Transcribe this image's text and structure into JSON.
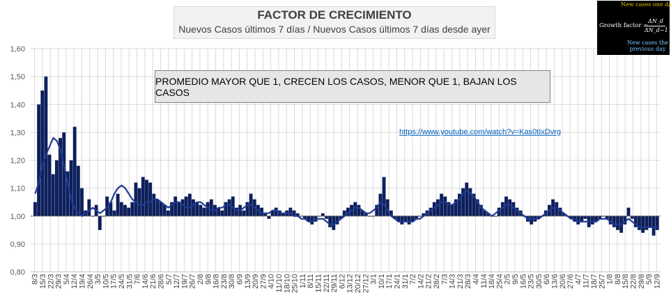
{
  "chart_data": {
    "type": "bar",
    "title": "FACTOR DE CRECIMIENTO",
    "subtitle": "Nuevos Casos últimos 7 días / Nuevos Casos últimos 7 días desde ayer",
    "annotation": "PROMEDIO MAYOR QUE 1, CRECEN LOS CASOS, MENOR QUE 1, BAJAN LOS CASOS",
    "link": "https://www.youtube.com/watch?v=Kas0tIxDvrg",
    "baseline": 1.0,
    "ylim": [
      0.8,
      1.6
    ],
    "yticks": [
      "0,80",
      "0,90",
      "1,00",
      "1,10",
      "1,20",
      "1,30",
      "1,40",
      "1,50",
      "1,60"
    ],
    "xticks": [
      "8/3",
      "15/3",
      "22/3",
      "29/3",
      "5/4",
      "12/4",
      "19/4",
      "26/4",
      "3/5",
      "10/5",
      "17/5",
      "24/5",
      "31/5",
      "7/6",
      "14/6",
      "21/6",
      "28/6",
      "5/7",
      "12/7",
      "19/7",
      "26/7",
      "2/8",
      "9/8",
      "16/8",
      "23/8",
      "30/8",
      "6/9",
      "13/9",
      "20/9",
      "27/9",
      "4/10",
      "11/10",
      "18/10",
      "25/10",
      "1/11",
      "8/11",
      "15/11",
      "22/11",
      "29/11",
      "6/12",
      "13/12",
      "20/12",
      "27/12",
      "3/1",
      "10/1",
      "17/1",
      "24/1",
      "31/1",
      "7/2",
      "14/2",
      "21/2",
      "28/2",
      "7/3",
      "14/3",
      "21/3",
      "28/3",
      "4/4",
      "11/4",
      "18/4",
      "25/4",
      "2/5",
      "9/5",
      "16/5",
      "23/5",
      "30/5",
      "6/6",
      "13/6",
      "20/6",
      "27/6",
      "4/7",
      "11/7",
      "18/7",
      "25/7",
      "1/8",
      "8/8",
      "15/8",
      "22/8",
      "29/8",
      "5/9",
      "12/9"
    ],
    "series": [
      {
        "values": [
          1.05,
          1.4,
          1.45,
          1.5,
          1.22,
          1.15,
          1.2,
          1.28,
          1.3,
          1.16,
          1.2,
          1.32,
          1.18,
          1.1,
          1.02,
          1.06,
          1.0,
          1.04,
          0.95,
          1.0,
          1.07,
          1.05,
          1.02,
          1.08,
          1.05,
          1.04,
          1.03,
          1.05,
          1.12,
          1.1,
          1.14,
          1.13,
          1.12,
          1.08,
          1.06,
          1.05,
          1.04,
          1.02,
          1.05,
          1.07,
          1.05,
          1.06,
          1.07,
          1.08,
          1.06,
          1.05,
          1.04,
          1.03,
          1.05,
          1.06,
          1.04,
          1.03,
          1.02,
          1.05,
          1.06,
          1.07,
          1.03,
          1.04,
          1.02,
          1.05,
          1.08,
          1.06,
          1.04,
          1.03,
          1.01,
          0.99,
          1.02,
          1.03,
          1.02,
          1.01,
          1.02,
          1.03,
          1.02,
          1.01,
          1.0,
          0.99,
          0.98,
          0.97,
          0.98,
          1.0,
          1.01,
          0.99,
          0.96,
          0.95,
          0.97,
          0.99,
          1.02,
          1.03,
          1.04,
          1.05,
          1.04,
          1.02,
          1.01,
          1.0,
          1.0,
          1.04,
          1.08,
          1.14,
          1.06,
          1.02,
          0.99,
          0.98,
          0.97,
          0.98,
          0.97,
          0.98,
          0.99,
          1.0,
          1.01,
          1.02,
          1.03,
          1.05,
          1.06,
          1.08,
          1.07,
          1.05,
          1.04,
          1.06,
          1.08,
          1.1,
          1.12,
          1.1,
          1.08,
          1.06,
          1.04,
          1.02,
          1.01,
          1.0,
          1.0,
          1.03,
          1.05,
          1.07,
          1.06,
          1.05,
          1.03,
          1.02,
          1.0,
          0.98,
          0.97,
          0.98,
          0.99,
          1.0,
          1.02,
          1.04,
          1.06,
          1.05,
          1.03,
          1.01,
          1.0,
          0.99,
          0.98,
          0.97,
          0.98,
          0.99,
          0.96,
          0.97,
          0.98,
          0.99,
          1.0,
          0.99,
          0.97,
          0.96,
          0.95,
          0.94,
          0.97,
          1.03,
          0.99,
          0.96,
          0.95,
          0.94,
          0.95,
          0.96,
          0.93,
          0.95
        ]
      },
      {
        "values": [
          1.08,
          1.12,
          1.18,
          1.22,
          1.25,
          1.28,
          1.27,
          1.24,
          1.18,
          1.12,
          1.06,
          1.03,
          1.01,
          1.0,
          1.01,
          1.02,
          1.03,
          1.02,
          1.01,
          1.02,
          1.03,
          1.05,
          1.08,
          1.1,
          1.11,
          1.1,
          1.08,
          1.06,
          1.05,
          1.04,
          1.04,
          1.05,
          1.05,
          1.06,
          1.06,
          1.05,
          1.04,
          1.03,
          1.04,
          1.05,
          1.05,
          1.04,
          1.03,
          1.03,
          1.04,
          1.05,
          1.05,
          1.04,
          1.03,
          1.02,
          1.02,
          1.03,
          1.03,
          1.04,
          1.04,
          1.03,
          1.02,
          1.02,
          1.03,
          1.04,
          1.04,
          1.03,
          1.02,
          1.01,
          1.01,
          1.01,
          1.02,
          1.02,
          1.01,
          1.01,
          1.01,
          1.01,
          1.0,
          1.0,
          0.99,
          0.99,
          0.98,
          0.98,
          0.99,
          0.99,
          0.99,
          0.98,
          0.97,
          0.97,
          0.98,
          0.99,
          1.0,
          1.01,
          1.02,
          1.03,
          1.03,
          1.02,
          1.01,
          1.01,
          1.02,
          1.03,
          1.05,
          1.04,
          1.02,
          1.0,
          0.99,
          0.98,
          0.98,
          0.98,
          0.98,
          0.98,
          0.99,
          0.99,
          1.0,
          1.01,
          1.02,
          1.03,
          1.04,
          1.05,
          1.05,
          1.04,
          1.04,
          1.05,
          1.06,
          1.08,
          1.09,
          1.08,
          1.07,
          1.05,
          1.03,
          1.02,
          1.01,
          1.0,
          1.01,
          1.02,
          1.03,
          1.04,
          1.04,
          1.03,
          1.02,
          1.01,
          1.0,
          0.99,
          0.99,
          0.99,
          0.99,
          1.0,
          1.01,
          1.02,
          1.03,
          1.03,
          1.02,
          1.01,
          1.0,
          0.99,
          0.99,
          0.98,
          0.98,
          0.98,
          0.98,
          0.98,
          0.98,
          0.99,
          0.99,
          0.99,
          0.98,
          0.97,
          0.97,
          0.97,
          0.98,
          0.99,
          0.98,
          0.97,
          0.96,
          0.96,
          0.96,
          0.96,
          0.96,
          0.96
        ]
      }
    ]
  },
  "inset": {
    "top_note": "New cases one day",
    "formula_label": "Growth factor =",
    "numerator": "ΔN_d",
    "denominator": "ΔN_d−1",
    "bottom_note_1": "New cases the",
    "bottom_note_2": "previous day"
  },
  "colors": {
    "bars": "#0d1f5c",
    "line": "#1f3a93",
    "grid": "#d9d9d9",
    "baseline": "#595959",
    "plot_bg": "#ffffff"
  }
}
